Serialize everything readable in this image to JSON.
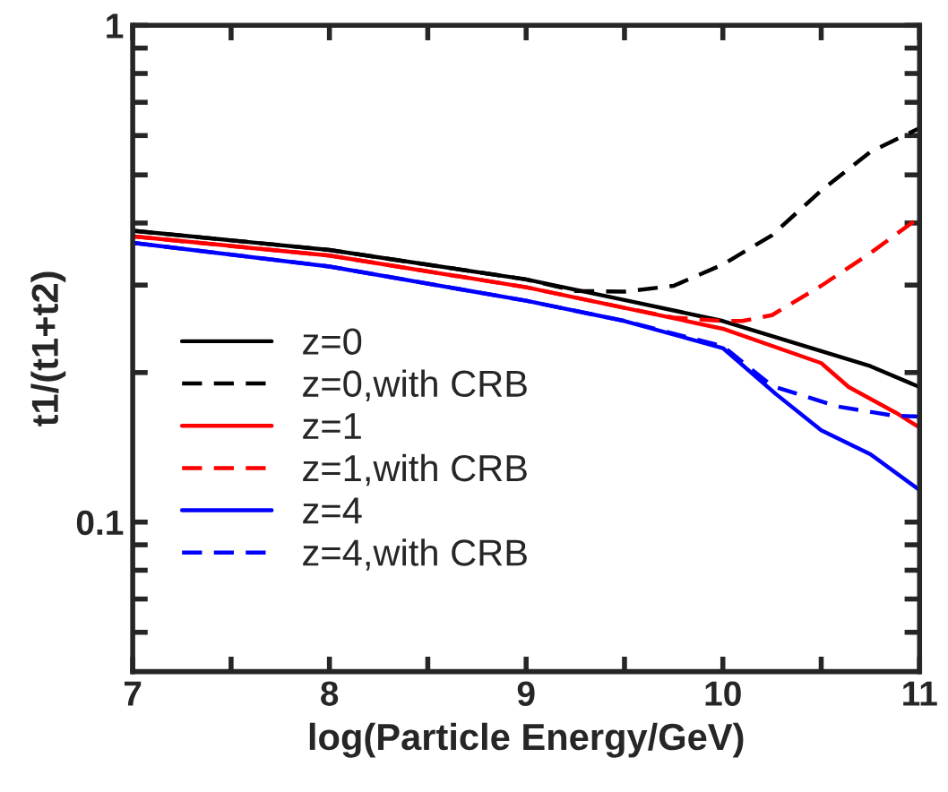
{
  "chart_data": {
    "type": "line",
    "xlabel": "log(Particle Energy/GeV)",
    "ylabel": "t1/(t1+t2)",
    "x": [
      7,
      8,
      9,
      9.5,
      10,
      10.5,
      10.75,
      11
    ],
    "series": [
      {
        "name": "z=0",
        "color": "#000000",
        "line_style": "solid",
        "values": [
          0.386,
          0.353,
          0.308,
          0.28,
          0.254,
          0.221,
          0.206,
          0.187
        ]
      },
      {
        "name": "z=0,with CRB",
        "color": "#000000",
        "line_style": "dashed",
        "x": [
          7,
          8,
          9,
          9.25,
          9.5,
          9.75,
          10,
          10.25,
          10.5,
          10.75,
          11
        ],
        "values": [
          0.386,
          0.353,
          0.308,
          0.292,
          0.291,
          0.299,
          0.33,
          0.378,
          0.465,
          0.556,
          0.621
        ]
      },
      {
        "name": "z=1",
        "color": "#ff0000",
        "line_style": "solid",
        "x": [
          7,
          8,
          9,
          9.5,
          10,
          10.5,
          10.64,
          10.88,
          11
        ],
        "values": [
          0.376,
          0.344,
          0.297,
          0.27,
          0.245,
          0.209,
          0.187,
          0.166,
          0.155
        ]
      },
      {
        "name": "z=1,with CRB",
        "color": "#ff0000",
        "line_style": "dashed",
        "x": [
          7,
          8,
          9,
          9.5,
          9.75,
          10,
          10.1,
          10.25,
          10.5,
          10.75,
          11
        ],
        "values": [
          0.376,
          0.344,
          0.297,
          0.27,
          0.258,
          0.254,
          0.254,
          0.261,
          0.299,
          0.348,
          0.411
        ]
      },
      {
        "name": "z=4",
        "color": "#0000ff",
        "line_style": "solid",
        "x": [
          7,
          8,
          9,
          9.5,
          10,
          10.27,
          10.5,
          10.75,
          11
        ],
        "values": [
          0.365,
          0.327,
          0.279,
          0.254,
          0.224,
          0.181,
          0.153,
          0.137,
          0.116
        ]
      },
      {
        "name": "z=4,with CRB",
        "color": "#0000ff",
        "line_style": "dashed",
        "x": [
          7,
          8,
          9,
          9.5,
          10,
          10.25,
          10.58,
          10.86,
          11
        ],
        "values": [
          0.365,
          0.327,
          0.279,
          0.254,
          0.226,
          0.188,
          0.171,
          0.164,
          0.163
        ]
      }
    ],
    "log": "y",
    "xlim": [
      7,
      11
    ],
    "ylim": [
      0.05,
      1
    ],
    "xticks": [
      7,
      {
        "value": 7.5,
        "label": null
      },
      8,
      {
        "value": 8.5,
        "label": null
      },
      9,
      {
        "value": 9.5,
        "label": null
      },
      10,
      {
        "value": 10.5,
        "label": null
      },
      11
    ],
    "yticks": [
      {
        "value": 0.06,
        "label": null
      },
      {
        "value": 0.07,
        "label": null
      },
      {
        "value": 0.08,
        "label": null
      },
      {
        "value": 0.09,
        "label": null
      },
      0.1,
      {
        "value": 0.2,
        "label": null
      },
      {
        "value": 0.3,
        "label": null
      },
      {
        "value": 0.4,
        "label": null
      },
      {
        "value": 0.5,
        "label": null
      },
      {
        "value": 0.6,
        "label": null
      },
      {
        "value": 0.7,
        "label": null
      },
      {
        "value": 0.8,
        "label": null
      },
      {
        "value": 0.9,
        "label": null
      },
      1
    ],
    "grid": false,
    "legend": "bottom left"
  }
}
